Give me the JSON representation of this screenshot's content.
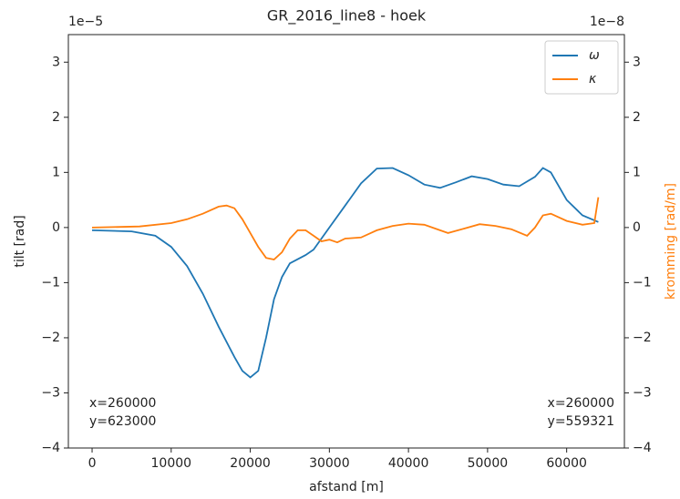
{
  "chart_data": {
    "type": "line",
    "title": "GR_2016_line8 - hoek",
    "xlabel": "afstand [m]",
    "ylabel": "tilt [rad]",
    "y2label": "kromming [rad/m]",
    "y_offset": "1e−5",
    "y2_offset": "1e−8",
    "xlim": [
      -3000,
      67300
    ],
    "ylim": [
      -4,
      3.5
    ],
    "y2lim": [
      -4,
      3.5
    ],
    "xticks": [
      0,
      10000,
      20000,
      30000,
      40000,
      50000,
      60000
    ],
    "yticks": [
      {
        "value": -4,
        "label": "−4"
      },
      {
        "value": -3,
        "label": "−3"
      },
      {
        "value": -2,
        "label": "−2"
      },
      {
        "value": -1,
        "label": "−1"
      },
      0,
      1,
      2,
      3
    ],
    "y2ticks": [
      {
        "value": -4,
        "label": "−4"
      },
      {
        "value": -3,
        "label": "−3"
      },
      {
        "value": -2,
        "label": "−2"
      },
      {
        "value": -1,
        "label": "−1"
      },
      0,
      1,
      2,
      3
    ],
    "legend": "upper right",
    "annotations": [
      [
        "x=260000",
        "y=623000"
      ],
      [
        "x=260000",
        "y=559321"
      ]
    ],
    "series": [
      {
        "name": "ω",
        "color": "#1f77b4",
        "x": [
          0,
          5000,
          8000,
          10000,
          12000,
          14000,
          16000,
          18000,
          19000,
          20000,
          21000,
          22000,
          23000,
          24000,
          25000,
          27000,
          28000,
          30000,
          32000,
          34000,
          36000,
          38000,
          40000,
          42000,
          44000,
          46000,
          48000,
          50000,
          52000,
          54000,
          56000,
          57000,
          58000,
          60000,
          62000,
          64000
        ],
        "values": [
          -0.05,
          -0.07,
          -0.15,
          -0.35,
          -0.7,
          -1.2,
          -1.8,
          -2.35,
          -2.6,
          -2.72,
          -2.6,
          -2.0,
          -1.3,
          -0.9,
          -0.65,
          -0.5,
          -0.4,
          0.0,
          0.4,
          0.8,
          1.07,
          1.08,
          0.95,
          0.78,
          0.72,
          0.82,
          0.93,
          0.88,
          0.78,
          0.75,
          0.92,
          1.08,
          1.0,
          0.5,
          0.22,
          0.1
        ]
      },
      {
        "name": "κ",
        "color": "#ff7f0e",
        "axis": "y2",
        "x": [
          0,
          6000,
          10000,
          12000,
          14000,
          16000,
          17000,
          18000,
          19000,
          20000,
          21000,
          22000,
          23000,
          24000,
          25000,
          26000,
          27000,
          28000,
          29000,
          30000,
          31000,
          32000,
          34000,
          36000,
          38000,
          40000,
          42000,
          44000,
          45000,
          47000,
          49000,
          51000,
          53000,
          55000,
          56000,
          57000,
          58000,
          60000,
          62000,
          63500,
          64000
        ],
        "values": [
          0,
          0.02,
          0.08,
          0.15,
          0.25,
          0.38,
          0.4,
          0.35,
          0.15,
          -0.1,
          -0.35,
          -0.55,
          -0.58,
          -0.45,
          -0.2,
          -0.05,
          -0.05,
          -0.15,
          -0.25,
          -0.22,
          -0.27,
          -0.2,
          -0.18,
          -0.05,
          0.03,
          0.07,
          0.05,
          -0.05,
          -0.1,
          -0.02,
          0.06,
          0.03,
          -0.03,
          -0.15,
          0.0,
          0.22,
          0.25,
          0.12,
          0.05,
          0.08,
          0.55
        ]
      }
    ]
  }
}
